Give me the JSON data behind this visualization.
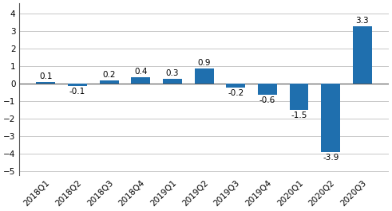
{
  "categories": [
    "2018Q1",
    "2018Q2",
    "2018Q3",
    "2018Q4",
    "2019Q1",
    "2019Q2",
    "2019Q3",
    "2019Q4",
    "2020Q1",
    "2020Q2",
    "2020Q3"
  ],
  "values": [
    0.1,
    -0.1,
    0.2,
    0.4,
    0.3,
    0.9,
    -0.2,
    -0.6,
    -1.5,
    -3.9,
    3.3
  ],
  "bar_color": "#1F6FAE",
  "ylim": [
    -5.2,
    4.6
  ],
  "yticks": [
    -5,
    -4,
    -3,
    -2,
    -1,
    0,
    1,
    2,
    3,
    4
  ],
  "background_color": "#ffffff",
  "grid_color": "#c8c8c8",
  "tick_fontsize": 7.5,
  "bar_label_fontsize": 7.5
}
